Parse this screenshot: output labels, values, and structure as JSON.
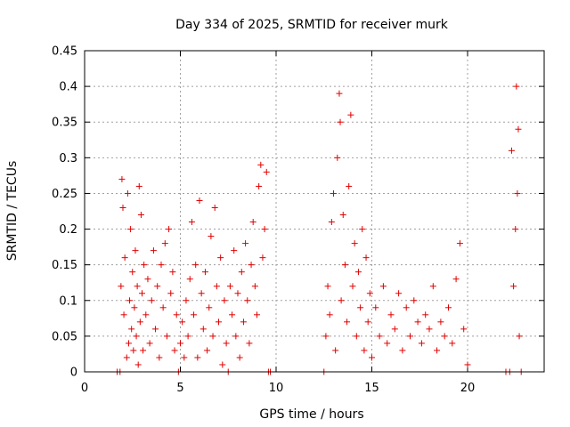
{
  "chart_data": {
    "type": "scatter",
    "title": "Day 334 of 2025, SRMTID for receiver murk",
    "xlabel": "GPS time / hours",
    "ylabel": "SRMTID / TECUs",
    "xlim": [
      0,
      24
    ],
    "ylim": [
      0,
      0.45
    ],
    "x_ticks": [
      0,
      5,
      10,
      15,
      20
    ],
    "y_ticks": [
      0,
      0.05,
      0.1,
      0.15,
      0.2,
      0.25,
      0.3,
      0.35,
      0.4,
      0.45
    ],
    "x_tick_labels": [
      "0",
      "5",
      "10",
      "15",
      "20"
    ],
    "y_tick_labels": [
      "0",
      "0.05",
      "0.1",
      "0.15",
      "0.2",
      "0.25",
      "0.3",
      "0.35",
      "0.4",
      "0.45"
    ],
    "grid": true,
    "marker": "+",
    "colors": {
      "points": "#e00000",
      "grid": "#a0a0a0",
      "axes": "#000000"
    },
    "series": [
      {
        "points": [
          [
            1.7,
            0.0
          ],
          [
            1.85,
            0.0
          ],
          [
            1.9,
            0.12
          ],
          [
            1.95,
            0.27
          ],
          [
            2.0,
            0.23
          ],
          [
            2.05,
            0.08
          ],
          [
            2.1,
            0.16
          ],
          [
            2.2,
            0.02
          ],
          [
            2.25,
            0.25
          ],
          [
            2.3,
            0.04
          ],
          [
            2.35,
            0.1
          ],
          [
            2.4,
            0.2
          ],
          [
            2.45,
            0.06
          ],
          [
            2.5,
            0.14
          ],
          [
            2.55,
            0.03
          ],
          [
            2.6,
            0.09
          ],
          [
            2.65,
            0.17
          ],
          [
            2.7,
            0.05
          ],
          [
            2.75,
            0.12
          ],
          [
            2.8,
            0.01
          ],
          [
            2.85,
            0.26
          ],
          [
            2.9,
            0.07
          ],
          [
            2.95,
            0.22
          ],
          [
            3.0,
            0.11
          ],
          [
            3.05,
            0.03
          ],
          [
            3.1,
            0.15
          ],
          [
            3.2,
            0.08
          ],
          [
            3.3,
            0.13
          ],
          [
            3.4,
            0.04
          ],
          [
            3.5,
            0.1
          ],
          [
            3.6,
            0.17
          ],
          [
            3.7,
            0.06
          ],
          [
            3.8,
            0.12
          ],
          [
            3.9,
            0.02
          ],
          [
            4.0,
            0.15
          ],
          [
            4.1,
            0.09
          ],
          [
            4.2,
            0.18
          ],
          [
            4.3,
            0.05
          ],
          [
            4.4,
            0.2
          ],
          [
            4.5,
            0.11
          ],
          [
            4.6,
            0.14
          ],
          [
            4.7,
            0.03
          ],
          [
            4.8,
            0.08
          ],
          [
            4.9,
            0.0
          ],
          [
            5.0,
            0.04
          ],
          [
            5.1,
            0.07
          ],
          [
            5.2,
            0.02
          ],
          [
            5.3,
            0.1
          ],
          [
            5.4,
            0.05
          ],
          [
            5.5,
            0.13
          ],
          [
            5.6,
            0.21
          ],
          [
            5.7,
            0.08
          ],
          [
            5.8,
            0.15
          ],
          [
            5.9,
            0.02
          ],
          [
            6.0,
            0.24
          ],
          [
            6.1,
            0.11
          ],
          [
            6.2,
            0.06
          ],
          [
            6.3,
            0.14
          ],
          [
            6.4,
            0.03
          ],
          [
            6.5,
            0.09
          ],
          [
            6.6,
            0.19
          ],
          [
            6.7,
            0.05
          ],
          [
            6.8,
            0.23
          ],
          [
            6.9,
            0.12
          ],
          [
            7.0,
            0.07
          ],
          [
            7.1,
            0.16
          ],
          [
            7.2,
            0.01
          ],
          [
            7.3,
            0.1
          ],
          [
            7.4,
            0.04
          ],
          [
            7.5,
            0.0
          ],
          [
            7.6,
            0.12
          ],
          [
            7.7,
            0.08
          ],
          [
            7.8,
            0.17
          ],
          [
            7.9,
            0.05
          ],
          [
            8.0,
            0.11
          ],
          [
            8.1,
            0.02
          ],
          [
            8.2,
            0.14
          ],
          [
            8.3,
            0.07
          ],
          [
            8.4,
            0.18
          ],
          [
            8.5,
            0.1
          ],
          [
            8.6,
            0.04
          ],
          [
            8.7,
            0.15
          ],
          [
            8.8,
            0.21
          ],
          [
            8.9,
            0.12
          ],
          [
            9.0,
            0.08
          ],
          [
            9.1,
            0.26
          ],
          [
            9.2,
            0.29
          ],
          [
            9.3,
            0.16
          ],
          [
            9.4,
            0.2
          ],
          [
            9.5,
            0.28
          ],
          [
            9.6,
            0.0
          ],
          [
            9.7,
            0.0
          ],
          [
            12.5,
            0.0
          ],
          [
            12.6,
            0.05
          ],
          [
            12.7,
            0.12
          ],
          [
            12.8,
            0.08
          ],
          [
            12.9,
            0.21
          ],
          [
            13.0,
            0.25
          ],
          [
            13.1,
            0.03
          ],
          [
            13.2,
            0.3
          ],
          [
            13.3,
            0.39
          ],
          [
            13.35,
            0.35
          ],
          [
            13.4,
            0.1
          ],
          [
            13.5,
            0.22
          ],
          [
            13.6,
            0.15
          ],
          [
            13.7,
            0.07
          ],
          [
            13.8,
            0.26
          ],
          [
            13.9,
            0.36
          ],
          [
            14.0,
            0.12
          ],
          [
            14.1,
            0.18
          ],
          [
            14.2,
            0.05
          ],
          [
            14.3,
            0.14
          ],
          [
            14.4,
            0.09
          ],
          [
            14.5,
            0.2
          ],
          [
            14.6,
            0.03
          ],
          [
            14.7,
            0.16
          ],
          [
            14.8,
            0.07
          ],
          [
            14.9,
            0.11
          ],
          [
            15.0,
            0.02
          ],
          [
            15.2,
            0.09
          ],
          [
            15.4,
            0.05
          ],
          [
            15.6,
            0.12
          ],
          [
            15.8,
            0.04
          ],
          [
            16.0,
            0.08
          ],
          [
            16.2,
            0.06
          ],
          [
            16.4,
            0.11
          ],
          [
            16.6,
            0.03
          ],
          [
            16.8,
            0.09
          ],
          [
            17.0,
            0.05
          ],
          [
            17.2,
            0.1
          ],
          [
            17.4,
            0.07
          ],
          [
            17.6,
            0.04
          ],
          [
            17.8,
            0.08
          ],
          [
            18.0,
            0.06
          ],
          [
            18.2,
            0.12
          ],
          [
            18.4,
            0.03
          ],
          [
            18.6,
            0.07
          ],
          [
            18.8,
            0.05
          ],
          [
            19.0,
            0.09
          ],
          [
            19.2,
            0.04
          ],
          [
            19.4,
            0.13
          ],
          [
            19.6,
            0.18
          ],
          [
            19.8,
            0.06
          ],
          [
            20.0,
            0.01
          ],
          [
            22.0,
            0.0
          ],
          [
            22.2,
            0.0
          ],
          [
            22.3,
            0.31
          ],
          [
            22.4,
            0.12
          ],
          [
            22.5,
            0.2
          ],
          [
            22.55,
            0.4
          ],
          [
            22.6,
            0.25
          ],
          [
            22.65,
            0.34
          ],
          [
            22.7,
            0.05
          ],
          [
            22.8,
            0.0
          ]
        ]
      }
    ]
  }
}
